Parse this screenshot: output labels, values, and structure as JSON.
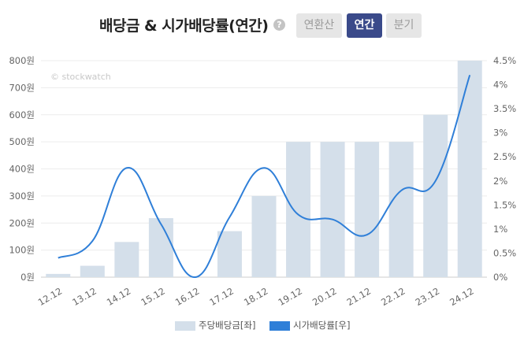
{
  "header": {
    "title": "배당금 & 시가배당률(연간)",
    "help_icon": "?",
    "tabs": [
      {
        "label": "연환산",
        "active": false
      },
      {
        "label": "연간",
        "active": true
      },
      {
        "label": "분기",
        "active": false
      }
    ]
  },
  "watermark": "© stockwatch",
  "legend": {
    "bar_label": "주당배당금[좌]",
    "line_label": "시가배당률[우]"
  },
  "colors": {
    "bar": "#d4dfea",
    "line": "#2f7fd8",
    "active_tab": "#3a4a8a",
    "inactive_tab": "#e6e6e6"
  },
  "chart_data": {
    "type": "bar+line",
    "categories": [
      "12.12",
      "13.12",
      "14.12",
      "15.12",
      "16.12",
      "17.12",
      "18.12",
      "19.12",
      "20.12",
      "21.12",
      "22.12",
      "23.12",
      "24.12"
    ],
    "y_left": {
      "min": 0,
      "max": 800,
      "ticks": [
        "0원",
        "100원",
        "200원",
        "300원",
        "400원",
        "500원",
        "600원",
        "700원",
        "800원"
      ]
    },
    "y_right": {
      "min": 0,
      "max": 4.5,
      "ticks": [
        "0%",
        "0.5%",
        "1%",
        "1.5%",
        "2%",
        "2.5%",
        "3%",
        "3.5%",
        "4%",
        "4.5%"
      ]
    },
    "series": [
      {
        "name": "주당배당금[좌]",
        "type": "bar",
        "axis": "left",
        "values": [
          12,
          42,
          130,
          218,
          0,
          170,
          300,
          500,
          500,
          500,
          500,
          600,
          800
        ]
      },
      {
        "name": "시가배당률[우]",
        "type": "line",
        "axis": "right",
        "values": [
          0.4,
          0.75,
          2.27,
          1.1,
          0.0,
          1.25,
          2.27,
          1.3,
          1.2,
          0.88,
          1.8,
          2.0,
          4.2
        ]
      }
    ],
    "grid": true
  }
}
